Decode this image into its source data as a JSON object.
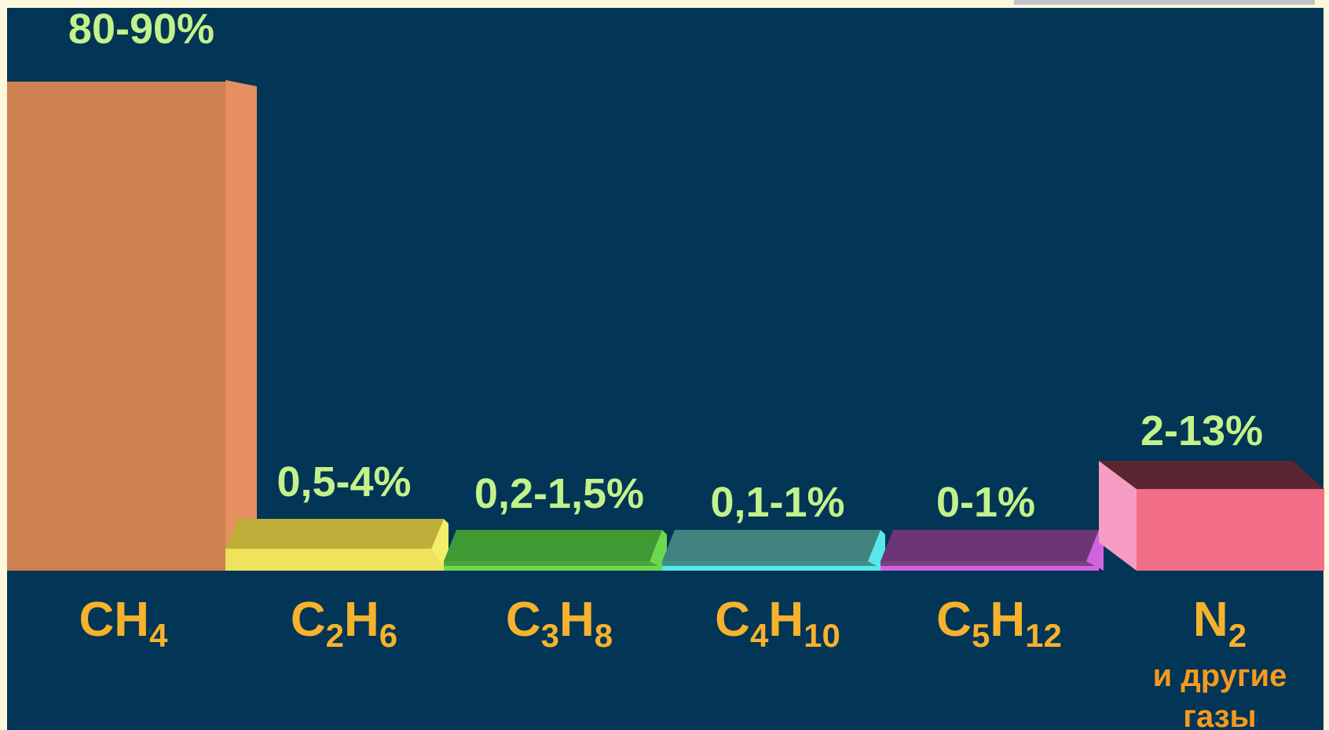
{
  "chart_data": {
    "type": "bar",
    "categories": [
      {
        "main": "CH",
        "sub": "4"
      },
      {
        "main": "C2H",
        "parts": [
          [
            "C",
            ""
          ],
          [
            "2",
            "sub"
          ],
          [
            "H",
            ""
          ],
          [
            "6",
            "sub"
          ]
        ]
      },
      {
        "main": "C3H8",
        "parts": [
          [
            "C",
            ""
          ],
          [
            "3",
            "sub"
          ],
          [
            "H",
            ""
          ],
          [
            "8",
            "sub"
          ]
        ]
      },
      {
        "main": "C4H10",
        "parts": [
          [
            "C",
            ""
          ],
          [
            "4",
            "sub"
          ],
          [
            "H",
            ""
          ],
          [
            "10",
            "sub"
          ]
        ]
      },
      {
        "main": "C5H12",
        "parts": [
          [
            "C",
            ""
          ],
          [
            "5",
            "sub"
          ],
          [
            "H",
            ""
          ],
          [
            "12",
            "sub"
          ]
        ]
      },
      {
        "main": "N2",
        "parts": [
          [
            "N",
            ""
          ],
          [
            "2",
            "sub"
          ]
        ],
        "note": [
          "и другие",
          "газы"
        ]
      }
    ],
    "value_labels": [
      "80-90%",
      "0,5-4%",
      "0,2-1,5%",
      "0,1-1%",
      "0-1%",
      "2-13%"
    ],
    "values": [
      85,
      2.25,
      0.85,
      0.55,
      0.5,
      7.5
    ],
    "colors": {
      "front": [
        "#cd8151",
        "#ede35c",
        "#4aa63c",
        "#3f8f8a",
        "#7b3f7f",
        "#f26d86"
      ],
      "top": [
        "#b7744a",
        "#bfad3a",
        "#3f9a34",
        "#40837f",
        "#6c3576",
        "#5a2632"
      ],
      "side": [
        "#e68f60",
        "#f3ee6a",
        "#6bd84e",
        "#57e7ec",
        "#d064e0",
        "#f79cc2"
      ]
    }
  }
}
